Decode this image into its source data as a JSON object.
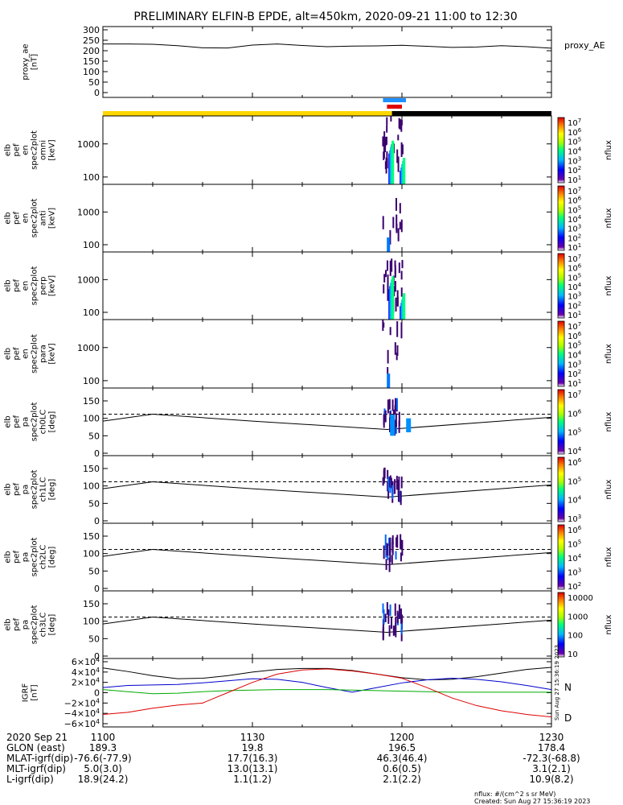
{
  "title": "PRELIMINARY ELFIN-B EPDE, alt=450km, 2020-09-21 11:00 to 12:30",
  "panels": [
    {
      "id": "proxy_ae",
      "ylabel": [
        "proxy_ae",
        "[nT]"
      ],
      "yticks": [
        "300",
        "250",
        "200",
        "150",
        "100",
        "50",
        "0"
      ],
      "legend": "proxy_AE"
    },
    {
      "id": "omni",
      "ylabel": [
        "elb",
        "pef",
        "en",
        "spec2plot",
        "omni",
        "[keV]"
      ],
      "yticks": [
        "1000",
        "100"
      ],
      "cbar_label": "nflux",
      "cbar_ticks": [
        "10^7",
        "10^6",
        "10^5",
        "10^4",
        "10^3",
        "10^2",
        "10^1"
      ]
    },
    {
      "id": "anti",
      "ylabel": [
        "elb",
        "pef",
        "en",
        "spec2plot",
        "anti",
        "[keV]"
      ],
      "yticks": [
        "1000",
        "100"
      ],
      "cbar_label": "nflux",
      "cbar_ticks": [
        "10^7",
        "10^6",
        "10^5",
        "10^4",
        "10^3",
        "10^2",
        "10^1"
      ]
    },
    {
      "id": "perp",
      "ylabel": [
        "elb",
        "pef",
        "en",
        "spec2plot",
        "perp",
        "[keV]"
      ],
      "yticks": [
        "1000",
        "100"
      ],
      "cbar_label": "nflux",
      "cbar_ticks": [
        "10^7",
        "10^6",
        "10^5",
        "10^4",
        "10^3",
        "10^2",
        "10^1"
      ]
    },
    {
      "id": "para",
      "ylabel": [
        "elb",
        "pef",
        "en",
        "spec2plot",
        "para",
        "[keV]"
      ],
      "yticks": [
        "1000",
        "100"
      ],
      "cbar_label": "nflux",
      "cbar_ticks": [
        "10^7",
        "10^6",
        "10^5",
        "10^4",
        "10^3",
        "10^2",
        "10^1"
      ]
    },
    {
      "id": "ch0LC",
      "ylabel": [
        "elb",
        "pef",
        "pa",
        "spec2plot",
        "ch0LC",
        "[deg]"
      ],
      "yticks": [
        "150",
        "100",
        "50",
        "0"
      ],
      "cbar_label": "nflux",
      "cbar_ticks": [
        "10^7",
        "10^6",
        "10^5",
        "10^4"
      ]
    },
    {
      "id": "ch1LC",
      "ylabel": [
        "elb",
        "pef",
        "pa",
        "spec2plot",
        "ch1LC",
        "[deg]"
      ],
      "yticks": [
        "150",
        "100",
        "50",
        "0"
      ],
      "cbar_label": "nflux",
      "cbar_ticks": [
        "10^6",
        "10^5",
        "10^4",
        "10^3"
      ]
    },
    {
      "id": "ch2LC",
      "ylabel": [
        "elb",
        "pef",
        "pa",
        "spec2plot",
        "ch2LC",
        "[deg]"
      ],
      "yticks": [
        "150",
        "100",
        "50",
        "0"
      ],
      "cbar_label": "nflux",
      "cbar_ticks": [
        "10^6",
        "10^5",
        "10^4",
        "10^3",
        "10^2"
      ]
    },
    {
      "id": "ch3LC",
      "ylabel": [
        "elb",
        "pef",
        "pa",
        "spec2plot",
        "ch3LC",
        "[deg]"
      ],
      "yticks": [
        "150",
        "100",
        "50",
        "0"
      ],
      "cbar_label": "nflux",
      "cbar_ticks": [
        "10000",
        "1000",
        "100",
        "10"
      ]
    },
    {
      "id": "igrf",
      "ylabel": [
        "IGRF",
        "[nT]"
      ],
      "yticks": [
        "6×10^4",
        "4×10^4",
        "2×10^4",
        "0",
        "−2×10^4",
        "−4×10^4",
        "−6×10^4"
      ],
      "legend_N": "N",
      "legend_D": "D"
    }
  ],
  "stamp": "Sun Aug 27 15:36:19 2023",
  "x_axis": {
    "row_labels": [
      "2020 Sep 21",
      "GLON (east)",
      "MLAT-igrf(dip)",
      "MLT-igrf(dip)",
      "L-igrf(dip)"
    ],
    "columns": [
      {
        "tick": "1100",
        "values": [
          "189.3",
          "-76.6(-77.9)",
          "5.0(3.0)",
          "18.9(24.2)"
        ]
      },
      {
        "tick": "1130",
        "values": [
          "19.8",
          "17.7(16.3)",
          "13.0(13.1)",
          "1.1(1.2)"
        ]
      },
      {
        "tick": "1200",
        "values": [
          "196.5",
          "46.3(46.4)",
          "0.6(0.5)",
          "2.1(2.2)"
        ]
      },
      {
        "tick": "1230",
        "values": [
          "178.4",
          "-72.3(-68.8)",
          "3.1(2.1)",
          "10.9(8.2)"
        ]
      }
    ]
  },
  "footer": {
    "units": "nflux: #/(cm^2 s sr MeV)",
    "created": "Created: Sun Aug 27 15:36:19 2023"
  },
  "chart_data": {
    "type": "line",
    "title": "PRELIMINARY ELFIN-B EPDE, alt=450km, 2020-09-21 11:00 to 12:30",
    "x_unit": "time (UT, hhmm)",
    "x_range": [
      "11:00",
      "12:30"
    ],
    "proxy_ae": {
      "ylabel": "proxy_ae [nT]",
      "ylim": [
        0,
        300
      ],
      "x": [
        "11:00",
        "11:05",
        "11:10",
        "11:15",
        "11:20",
        "11:25",
        "11:30",
        "11:35",
        "11:40",
        "11:45",
        "11:50",
        "11:55",
        "12:00",
        "12:05",
        "12:10",
        "12:15",
        "12:20",
        "12:25",
        "12:30"
      ],
      "values": [
        232,
        232,
        231,
        224,
        214,
        213,
        227,
        232,
        225,
        219,
        222,
        223,
        226,
        221,
        216,
        218,
        224,
        219,
        212
      ]
    },
    "igrf": {
      "ylabel": "IGRF [nT]",
      "ylim": [
        -60000,
        60000
      ],
      "x": [
        "11:00",
        "11:05",
        "11:10",
        "11:15",
        "11:20",
        "11:25",
        "11:30",
        "11:35",
        "11:40",
        "11:45",
        "11:50",
        "11:55",
        "12:00",
        "12:05",
        "12:10",
        "12:15",
        "12:20",
        "12:25",
        "12:30"
      ],
      "series": [
        {
          "name": "",
          "color": "#000000",
          "values": [
            48000,
            41000,
            33000,
            27000,
            28000,
            33000,
            40000,
            45000,
            47000,
            47000,
            43000,
            36000,
            29000,
            25000,
            26000,
            31000,
            38000,
            45000,
            49000
          ]
        },
        {
          "name": "N",
          "color": "#0000cc",
          "values": [
            10000,
            14000,
            15000,
            16000,
            19000,
            23000,
            27000,
            26000,
            20000,
            10000,
            1000,
            10000,
            19000,
            25000,
            28000,
            26000,
            21000,
            14000,
            6000
          ]
        },
        {
          "name": "",
          "color": "#00aa00",
          "values": [
            6000,
            2000,
            -2000,
            -1000,
            2000,
            4000,
            5000,
            6000,
            6000,
            6000,
            5000,
            4000,
            3000,
            2000,
            1000,
            1000,
            1000,
            1000,
            1000
          ]
        },
        {
          "name": "D",
          "color": "#dd0000",
          "values": [
            -42000,
            -38000,
            -30000,
            -24000,
            -20000,
            0,
            20000,
            36000,
            44000,
            46000,
            42000,
            36000,
            28000,
            10000,
            -10000,
            -25000,
            -35000,
            -42000,
            -47000
          ]
        }
      ]
    },
    "orbit_bars": {
      "yellow": [
        "11:00",
        "11:58"
      ],
      "black": [
        "11:58",
        "12:30"
      ],
      "blue": [
        "11:57",
        "12:00"
      ],
      "red": [
        "11:57",
        "12:00"
      ]
    },
    "spectrogram_activity": {
      "window": [
        "11:56",
        "12:00"
      ],
      "energy_range_keV": [
        60,
        7000
      ]
    },
    "pitch_angle_lines": {
      "solid_deg": {
        "x": [
          "11:00",
          "11:10",
          "11:30",
          "11:57",
          "12:30"
        ],
        "values": [
          92,
          112,
          92,
          68,
          103
        ]
      },
      "dashed_deg": {
        "x": [
          "11:00",
          "12:30"
        ],
        "values": [
          112,
          112
        ]
      }
    }
  }
}
